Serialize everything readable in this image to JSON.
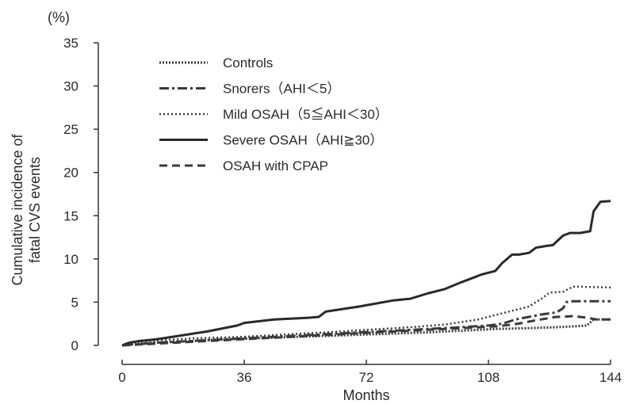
{
  "chart_data": {
    "type": "line",
    "title": "",
    "xlabel": "Months",
    "ylabel_line1": "Cumulative incidence of",
    "ylabel_line2": "fatal CVS events",
    "y_unit": "(%)",
    "xlim": [
      0,
      144
    ],
    "ylim": [
      0,
      35
    ],
    "xticks": [
      0,
      36,
      72,
      108,
      144
    ],
    "yticks": [
      0,
      5,
      10,
      15,
      20,
      25,
      30,
      35
    ],
    "grid": false,
    "legend_position": "top-left",
    "series": [
      {
        "name": "Controls",
        "dash": "dotted-dense",
        "width": 3,
        "color": "#3a3a3a",
        "x": [
          0,
          5,
          15,
          30,
          45,
          60,
          75,
          90,
          100,
          110,
          120,
          128,
          133,
          137,
          139,
          144
        ],
        "y": [
          0,
          0.2,
          0.4,
          0.7,
          0.9,
          1.1,
          1.3,
          1.5,
          1.7,
          1.9,
          2.0,
          2.1,
          2.2,
          2.3,
          3.0,
          3.0
        ]
      },
      {
        "name": "Snorers（AHI＜5）",
        "dash": "dash-dot",
        "width": 3,
        "color": "#3a3a3a",
        "x": [
          0,
          10,
          25,
          40,
          55,
          70,
          85,
          100,
          108,
          112,
          116,
          120,
          124,
          128,
          130,
          131,
          133,
          144
        ],
        "y": [
          0,
          0.3,
          0.6,
          0.9,
          1.2,
          1.5,
          1.8,
          2.1,
          2.3,
          2.5,
          3.0,
          3.3,
          3.6,
          3.8,
          4.3,
          5.0,
          5.1,
          5.1
        ]
      },
      {
        "name": "Mild OSAH（5≦AHI＜30）",
        "dash": "dotted",
        "width": 2.5,
        "color": "#3a3a3a",
        "x": [
          0,
          3,
          8,
          20,
          36,
          50,
          60,
          72,
          85,
          95,
          105,
          110,
          115,
          120,
          124,
          126,
          130,
          133,
          144
        ],
        "y": [
          0,
          0.4,
          0.5,
          0.8,
          1.0,
          1.3,
          1.5,
          1.8,
          2.1,
          2.4,
          3.0,
          3.5,
          4.0,
          4.5,
          5.5,
          6.1,
          6.2,
          6.8,
          6.7
        ]
      },
      {
        "name": "Severe OSAH（AHI≧30）",
        "dash": "solid",
        "width": 3,
        "color": "#2a2a2a",
        "x": [
          0,
          2,
          5,
          10,
          15,
          25,
          34,
          36,
          45,
          55,
          58,
          60,
          70,
          80,
          85,
          90,
          95,
          100,
          104,
          106,
          110,
          112,
          115,
          117,
          120,
          122,
          125,
          127,
          130,
          132,
          135,
          138,
          139,
          141,
          144
        ],
        "y": [
          0,
          0.3,
          0.5,
          0.7,
          1.0,
          1.6,
          2.3,
          2.6,
          3.0,
          3.2,
          3.3,
          3.9,
          4.5,
          5.2,
          5.4,
          6.0,
          6.5,
          7.3,
          7.9,
          8.2,
          8.6,
          9.5,
          10.5,
          10.5,
          10.7,
          11.3,
          11.5,
          11.6,
          12.7,
          13.0,
          13.0,
          13.2,
          15.5,
          16.6,
          16.7
        ]
      },
      {
        "name": "OSAH with CPAP",
        "dash": "dashed",
        "width": 3,
        "color": "#3a3a3a",
        "x": [
          0,
          10,
          25,
          40,
          55,
          70,
          85,
          100,
          110,
          115,
          118,
          122,
          125,
          128,
          130,
          133,
          137,
          140,
          144
        ],
        "y": [
          0,
          0.2,
          0.5,
          0.8,
          1.1,
          1.4,
          1.7,
          2.0,
          2.2,
          2.4,
          2.6,
          2.9,
          3.1,
          3.3,
          3.3,
          3.4,
          3.2,
          3.0,
          3.0
        ]
      }
    ]
  }
}
